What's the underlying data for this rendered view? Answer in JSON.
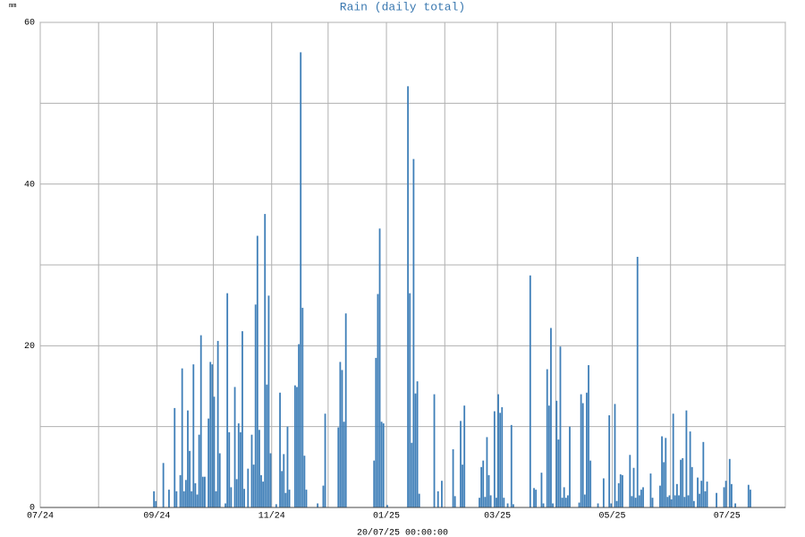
{
  "chart_data": {
    "type": "bar",
    "title": "Rain (daily total)",
    "unit": "mm",
    "xlabel": "20/07/25 00:00:00",
    "color": "#3f7fb8",
    "grid": true,
    "xlim": [
      0,
      396
    ],
    "ylim": [
      0,
      60
    ],
    "xticks": [
      {
        "value": 0,
        "label": "07/24"
      },
      {
        "value": 62,
        "label": "09/24"
      },
      {
        "value": 123,
        "label": "11/24"
      },
      {
        "value": 184,
        "label": "01/25"
      },
      {
        "value": 243,
        "label": "03/25"
      },
      {
        "value": 304,
        "label": "05/25"
      },
      {
        "value": 365,
        "label": "07/25"
      }
    ],
    "xminor": [
      31,
      92,
      153,
      215,
      274,
      335,
      396
    ],
    "yticks": [
      0,
      20,
      40,
      60
    ],
    "yminor": [
      10,
      30,
      50
    ],
    "x": [
      60,
      61,
      65,
      68,
      71,
      72,
      74,
      75,
      76,
      77,
      78,
      79,
      80,
      81,
      82,
      83,
      84,
      85,
      86,
      87,
      89,
      90,
      91,
      92,
      93,
      94,
      95,
      98,
      99,
      100,
      101,
      103,
      104,
      105,
      106,
      107,
      108,
      110,
      112,
      113,
      114,
      115,
      116,
      117,
      118,
      119,
      120,
      121,
      122,
      125,
      127,
      128,
      129,
      130,
      131,
      132,
      135,
      136,
      137,
      138,
      139,
      140,
      141,
      147,
      150,
      151,
      158,
      159,
      160,
      161,
      162,
      177,
      178,
      179,
      180,
      181,
      182,
      184,
      195,
      196,
      197,
      198,
      199,
      200,
      201,
      209,
      211,
      213,
      219,
      220,
      223,
      224,
      225,
      233,
      234,
      235,
      236,
      237,
      238,
      239,
      241,
      242,
      243,
      244,
      245,
      246,
      248,
      250,
      251,
      260,
      262,
      263,
      266,
      267,
      269,
      270,
      271,
      272,
      274,
      275,
      276,
      277,
      278,
      279,
      280,
      281,
      286,
      287,
      288,
      289,
      290,
      291,
      292,
      296,
      299,
      302,
      303,
      305,
      306,
      307,
      308,
      309,
      313,
      314,
      315,
      316,
      317,
      318,
      319,
      320,
      324,
      325,
      329,
      330,
      331,
      332,
      333,
      334,
      335,
      336,
      337,
      338,
      339,
      340,
      341,
      342,
      343,
      344,
      345,
      346,
      347,
      349,
      350,
      351,
      352,
      353,
      354,
      359,
      363,
      364,
      366,
      367,
      369,
      376,
      377
    ],
    "values": [
      2,
      0.8,
      5.5,
      2.2,
      12.3,
      2,
      4,
      17.2,
      2,
      3.4,
      12,
      7,
      2,
      17.7,
      3,
      1.6,
      9,
      21.3,
      3.8,
      3.8,
      11,
      18,
      17.7,
      13.7,
      2,
      20.6,
      6.7,
      0.5,
      26.5,
      9.3,
      2.5,
      14.9,
      3.5,
      10.4,
      9.3,
      21.8,
      2.3,
      4.8,
      9,
      5.3,
      25.1,
      33.6,
      9.6,
      4,
      3.2,
      36.3,
      15.2,
      26.2,
      6.7,
      0.4,
      14.2,
      4.5,
      6.6,
      1.8,
      10,
      2.2,
      15.1,
      14.9,
      20.2,
      56.3,
      24.7,
      6.4,
      2.2,
      0.5,
      2.7,
      11.6,
      9.9,
      18,
      17,
      10.6,
      24,
      5.8,
      18.5,
      26.4,
      34.5,
      10.6,
      10.4,
      0.3,
      52.1,
      26.5,
      8,
      43.1,
      14.1,
      15.6,
      1.7,
      14,
      2,
      3.3,
      7.2,
      1.4,
      10.7,
      5.3,
      12.6,
      1.2,
      5,
      5.8,
      1.3,
      8.7,
      4,
      1.5,
      11.9,
      1.2,
      14,
      11.7,
      12.4,
      1.2,
      0.5,
      10.2,
      0.4,
      28.7,
      2.4,
      2.2,
      4.3,
      0.5,
      17.1,
      12.6,
      22.2,
      0.5,
      13.2,
      8.4,
      19.9,
      1.2,
      2.5,
      1.2,
      1.5,
      10,
      0.6,
      14,
      12.9,
      1.6,
      14.2,
      17.6,
      5.8,
      0.5,
      3.6,
      11.4,
      0.5,
      12.8,
      0.8,
      3,
      4.1,
      4,
      6.5,
      1.4,
      4.9,
      1.2,
      31,
      1.5,
      2.2,
      2.5,
      4.2,
      1.2,
      2.7,
      8.8,
      5.6,
      8.6,
      1.3,
      1.5,
      1,
      11.6,
      1.5,
      2.9,
      1.5,
      5.9,
      6.1,
      1.3,
      12,
      1.5,
      9.4,
      5,
      0.8,
      3.7,
      1.7,
      3.3,
      8.1,
      2,
      3.2,
      1.8,
      2.5,
      3.3,
      6,
      2.9,
      0.5,
      2.8,
      2.2
    ]
  }
}
